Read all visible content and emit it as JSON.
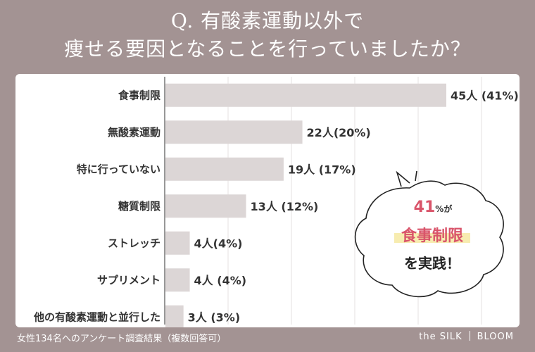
{
  "title": {
    "line1": "Q. 有酸素運動以外で",
    "line2": "痩せる要因となることを行っていましたか？"
  },
  "chart_data": {
    "type": "bar",
    "orientation": "horizontal",
    "categories": [
      "食事制限",
      "無酸素運動",
      "特に行っていない",
      "糖質制限",
      "ストレッチ",
      "サプリメント",
      "他の有酸素運動と並行した"
    ],
    "values": [
      45,
      22,
      19,
      13,
      4,
      4,
      3
    ],
    "value_labels": [
      "45人 (41%)",
      "22人(20%)",
      "19人 (17%)",
      "13人 (12%)",
      "4人(4%)",
      "4人 (4%)",
      "3人 (3%)"
    ],
    "xlim": [
      0,
      45
    ],
    "grid": true,
    "bar_color": "#dcd6d6"
  },
  "callout": {
    "percent": "41",
    "percent_unit": "%",
    "particle": "が",
    "highlight": "食事制限",
    "ending": "を実践！",
    "highlight_color": "#f7ecb0",
    "accent_color": "#d9546a"
  },
  "footer": {
    "note": "女性134名へのアンケート調査結果（複数回答可）",
    "brand_left": "the SILK",
    "brand_right": "BLOOM"
  },
  "colors": {
    "background": "#a39393",
    "panel": "#ffffff"
  }
}
